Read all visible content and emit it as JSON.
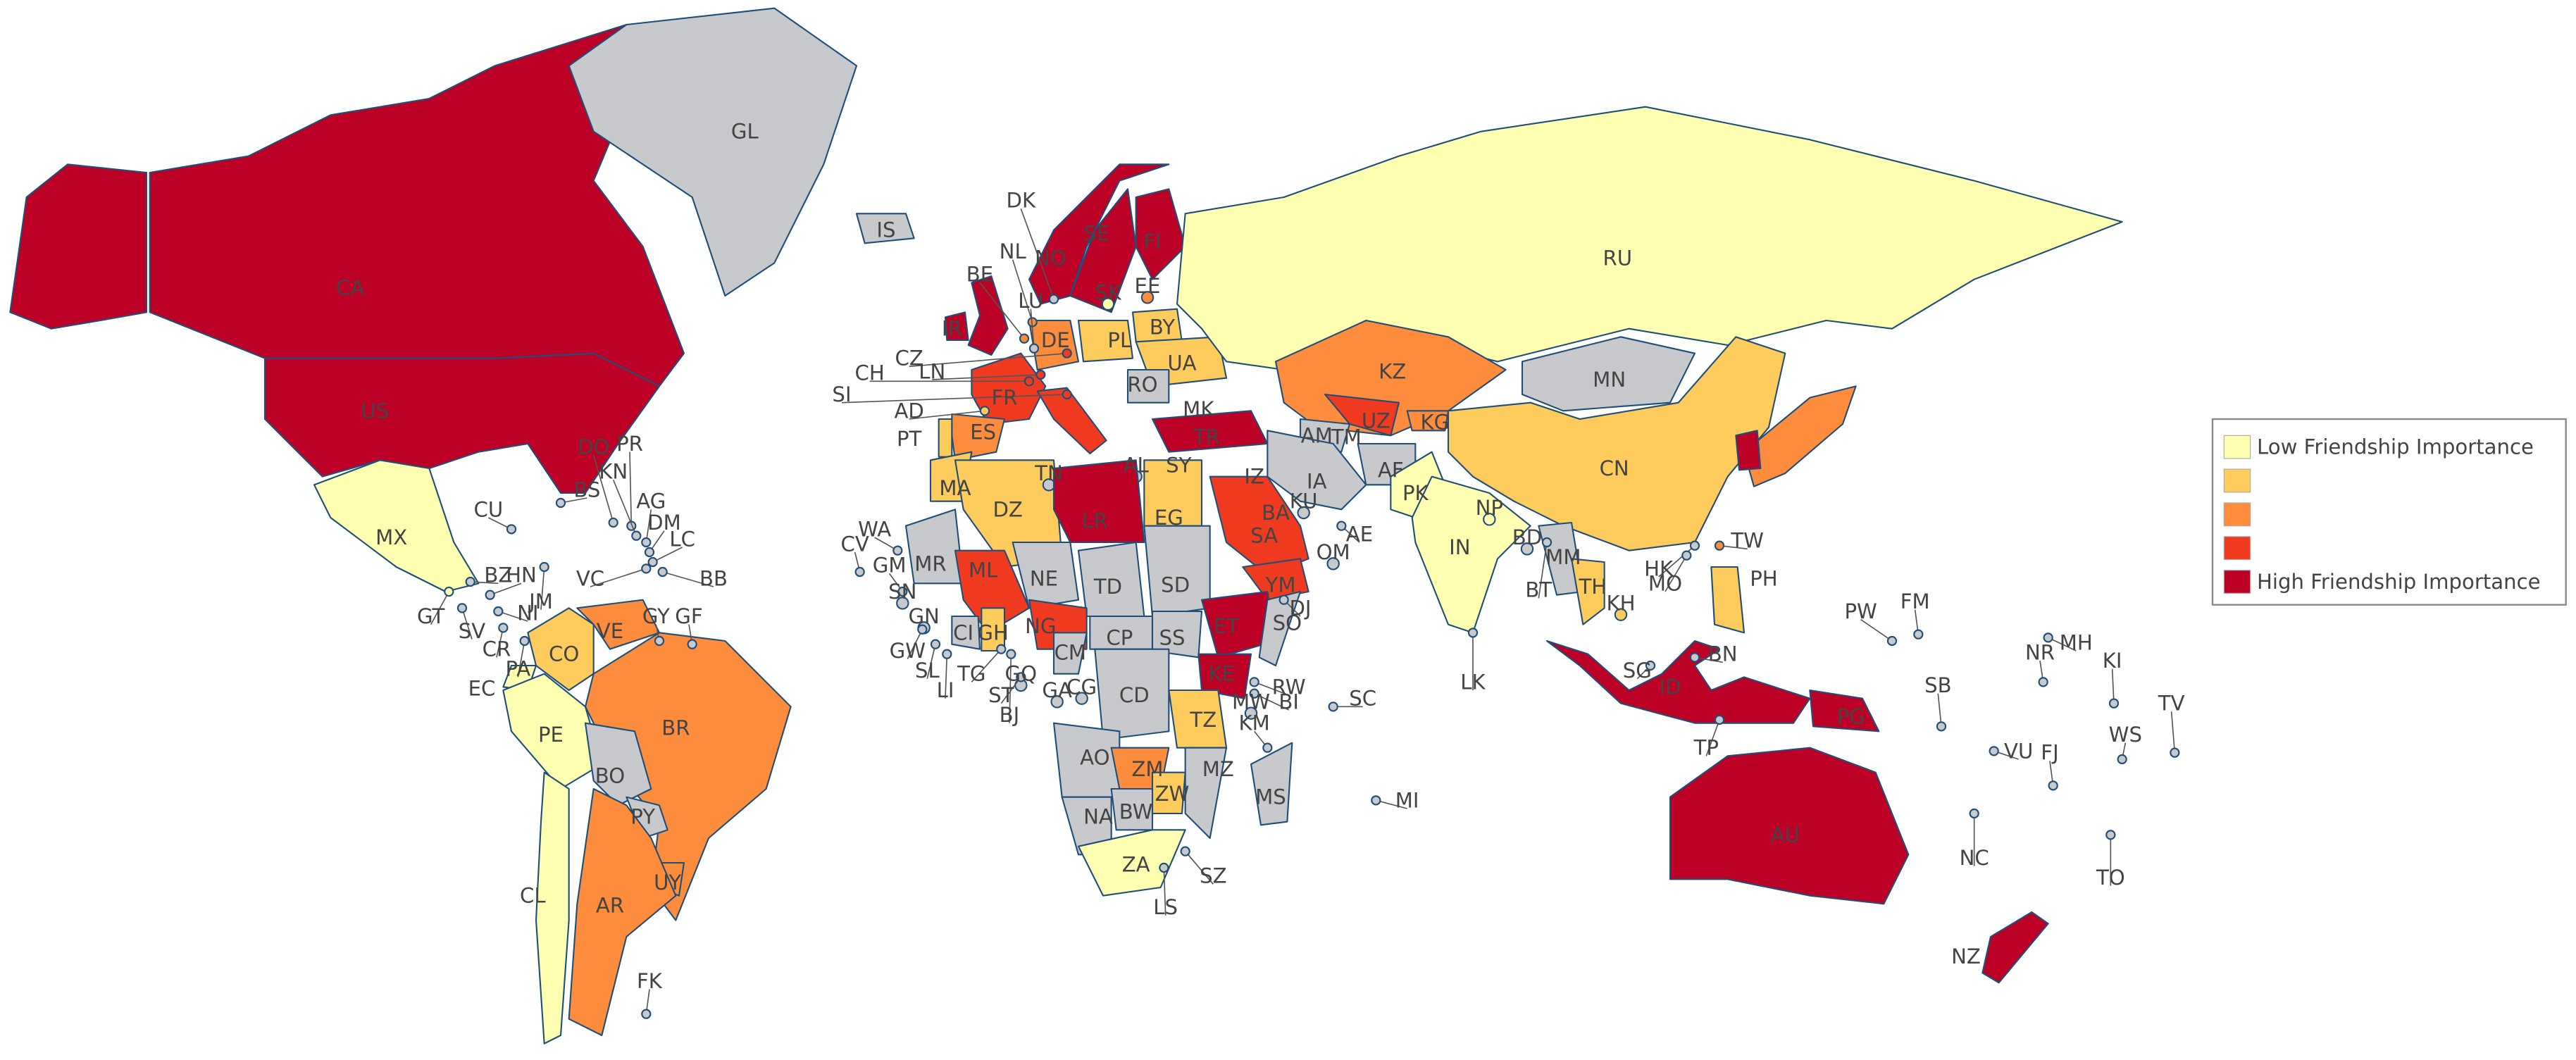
{
  "countries": [
    {
      "label": "CA",
      "color": "#bd0026"
    },
    {
      "label": "US",
      "color": "#bd0026"
    },
    {
      "label": "GL",
      "color": "#c8c9cc"
    },
    {
      "label": "MX",
      "color": "#ffffb2"
    },
    {
      "label": "CU",
      "color": "#c8c9cc"
    },
    {
      "label": "BS",
      "color": "#c8c9cc"
    },
    {
      "label": "DO",
      "color": "#c8c9cc"
    },
    {
      "label": "PR",
      "color": "#c8c9cc"
    },
    {
      "label": "KN",
      "color": "#c8c9cc"
    },
    {
      "label": "AG",
      "color": "#c8c9cc"
    },
    {
      "label": "DM",
      "color": "#c8c9cc"
    },
    {
      "label": "LC",
      "color": "#c8c9cc"
    },
    {
      "label": "BB",
      "color": "#c8c9cc"
    },
    {
      "label": "VC",
      "color": "#c8c9cc"
    },
    {
      "label": "GY",
      "color": "#c8c9cc"
    },
    {
      "label": "GF",
      "color": "#c8c9cc"
    },
    {
      "label": "BZ",
      "color": "#c8c9cc"
    },
    {
      "label": "GT",
      "color": "#ffffb2"
    },
    {
      "label": "SV",
      "color": "#c8c9cc"
    },
    {
      "label": "HN",
      "color": "#c8c9cc"
    },
    {
      "label": "NI",
      "color": "#c8c9cc"
    },
    {
      "label": "CR",
      "color": "#c8c9cc"
    },
    {
      "label": "PA",
      "color": "#c8c9cc"
    },
    {
      "label": "JM",
      "color": "#c8c9cc"
    },
    {
      "label": "CO",
      "color": "#fecc5c"
    },
    {
      "label": "VE",
      "color": "#fd8d3c"
    },
    {
      "label": "EC",
      "color": "#ffffb2"
    },
    {
      "label": "PE",
      "color": "#ffffb2"
    },
    {
      "label": "BR",
      "color": "#fd8d3c"
    },
    {
      "label": "BO",
      "color": "#c8c9cc"
    },
    {
      "label": "PY",
      "color": "#c8c9cc"
    },
    {
      "label": "UY",
      "color": "#fd8d3c"
    },
    {
      "label": "AR",
      "color": "#fd8d3c"
    },
    {
      "label": "CL",
      "color": "#ffffb2"
    },
    {
      "label": "FK",
      "color": "#c8c9cc"
    },
    {
      "label": "IS",
      "color": "#c8c9cc"
    },
    {
      "label": "IR",
      "color": "#bd0026"
    },
    {
      "color": "#bd0026"
    },
    {
      "label": "NO",
      "color": "#bd0026"
    },
    {
      "label": "SE",
      "color": "#bd0026"
    },
    {
      "label": "FI",
      "color": "#bd0026"
    },
    {
      "label": "DK",
      "color": "#c8c9cc"
    },
    {
      "label": "NL",
      "color": "#fd8d3c"
    },
    {
      "label": "BE",
      "color": "#fd8d3c"
    },
    {
      "label": "LU",
      "color": "#c8c9cc"
    },
    {
      "label": "DE",
      "color": "#fd8d3c"
    },
    {
      "label": "PL",
      "color": "#fecc5c"
    },
    {
      "label": "SK",
      "color": "#ffffb2"
    },
    {
      "label": "EE",
      "color": "#fd8d3c"
    },
    {
      "label": "BY",
      "color": "#fecc5c"
    },
    {
      "label": "UA",
      "color": "#fecc5c"
    },
    {
      "label": "CZ",
      "color": "#f03b20"
    },
    {
      "label": "CH",
      "color": "#f03b20"
    },
    {
      "label": "LN",
      "color": "#f03b20"
    },
    {
      "label": "SI",
      "color": "#f03b20"
    },
    {
      "label": "AD",
      "color": "#fecc5c"
    },
    {
      "label": "FR",
      "color": "#f03b20"
    },
    {
      "label": "ES",
      "color": "#fd8d3c"
    },
    {
      "label": "PT",
      "color": "#fecc5c"
    },
    {
      "color": "#f03b20"
    },
    {
      "label": "RO",
      "color": "#c8c9cc"
    },
    {
      "label": "MK",
      "color": "#c8c9cc"
    },
    {
      "label": "TR",
      "color": "#bd0026"
    },
    {
      "label": "RU",
      "color": "#ffffb2"
    },
    {
      "label": "KZ",
      "color": "#fd8d3c"
    },
    {
      "label": "UZ",
      "color": "#f03b20"
    },
    {
      "label": "TM",
      "color": "#c8c9cc"
    },
    {
      "label": "KG",
      "color": "#fd8d3c"
    },
    {
      "label": "AM",
      "color": "#c8c9cc"
    },
    {
      "label": "AF",
      "color": "#c8c9cc"
    },
    {
      "label": "IA",
      "color": "#c8c9cc"
    },
    {
      "label": "IZ",
      "color": "#fd8d3c"
    },
    {
      "label": "SY",
      "color": "#c8c9cc"
    },
    {
      "label": "AL",
      "color": "#c8c9cc"
    },
    {
      "label": "KU",
      "color": "#c8c9cc"
    },
    {
      "label": "BA",
      "color": "#fd8d3c"
    },
    {
      "label": "SA",
      "color": "#f03b20"
    },
    {
      "label": "AE",
      "color": "#c8c9cc"
    },
    {
      "label": "OM",
      "color": "#c8c9cc"
    },
    {
      "label": "YM",
      "color": "#f03b20"
    },
    {
      "label": "PK",
      "color": "#ffffb2"
    },
    {
      "label": "IN",
      "color": "#ffffb2"
    },
    {
      "label": "NP",
      "color": "#ffffb2"
    },
    {
      "label": "BD",
      "color": "#c8c9cc"
    },
    {
      "label": "BT",
      "color": "#c8c9cc"
    },
    {
      "label": "LK",
      "color": "#c8c9cc"
    },
    {
      "label": "MN",
      "color": "#c8c9cc"
    },
    {
      "label": "CN",
      "color": "#fecc5c"
    },
    {
      "color": "#fd8d3c"
    },
    {
      "color": "#bd0026"
    },
    {
      "label": "TW",
      "color": "#fd8d3c"
    },
    {
      "label": "HK",
      "color": "#c8c9cc"
    },
    {
      "label": "MO",
      "color": "#c8c9cc"
    },
    {
      "label": "MM",
      "color": "#c8c9cc"
    },
    {
      "label": "TH",
      "color": "#fecc5c"
    },
    {
      "label": "KH",
      "color": "#fecc5c"
    },
    {
      "label": "PH",
      "color": "#fecc5c"
    },
    {
      "label": "SG",
      "color": "#c8c9cc"
    },
    {
      "label": "BN",
      "color": "#c8c9cc"
    },
    {
      "label": "ID",
      "color": "#bd0026"
    },
    {
      "label": "TP",
      "color": "#c8c9cc"
    },
    {
      "label": "PG",
      "color": "#bd0026"
    },
    {
      "label": "AU",
      "color": "#bd0026"
    },
    {
      "label": "NZ",
      "color": "#bd0026"
    },
    {
      "label": "MA",
      "color": "#fecc5c"
    },
    {
      "label": "DZ",
      "color": "#fecc5c"
    },
    {
      "label": "TN",
      "color": "#c8c9cc"
    },
    {
      "label": "LR",
      "color": "#bd0026"
    },
    {
      "label": "EG",
      "color": "#fecc5c"
    },
    {
      "label": "MR",
      "color": "#c8c9cc"
    },
    {
      "label": "ML",
      "color": "#f03b20"
    },
    {
      "label": "NE",
      "color": "#c8c9cc"
    },
    {
      "label": "TD",
      "color": "#c8c9cc"
    },
    {
      "label": "SD",
      "color": "#c8c9cc"
    },
    {
      "label": "WA",
      "color": "#c8c9cc"
    },
    {
      "label": "CV",
      "color": "#c8c9cc"
    },
    {
      "label": "GM",
      "color": "#c8c9cc"
    },
    {
      "label": "SN",
      "color": "#c8c9cc"
    },
    {
      "label": "GN",
      "color": "#c8c9cc"
    },
    {
      "label": "GW",
      "color": "#c8c9cc"
    },
    {
      "label": "SL",
      "color": "#c8c9cc"
    },
    {
      "label": "LI",
      "color": "#c8c9cc"
    },
    {
      "label": "CI",
      "color": "#c8c9cc"
    },
    {
      "label": "GH",
      "color": "#fecc5c"
    },
    {
      "label": "TG",
      "color": "#c8c9cc"
    },
    {
      "label": "BJ",
      "color": "#c8c9cc"
    },
    {
      "label": "ST",
      "color": "#c8c9cc"
    },
    {
      "label": "GQ",
      "color": "#c8c9cc"
    },
    {
      "label": "NG",
      "color": "#f03b20"
    },
    {
      "label": "CM",
      "color": "#c8c9cc"
    },
    {
      "label": "CP",
      "color": "#c8c9cc"
    },
    {
      "label": "SS",
      "color": "#c8c9cc"
    },
    {
      "label": "ET",
      "color": "#bd0026"
    },
    {
      "label": "DJ",
      "color": "#c8c9cc"
    },
    {
      "label": "SO",
      "color": "#c8c9cc"
    },
    {
      "label": "KE",
      "color": "#bd0026"
    },
    {
      "label": "GA",
      "color": "#c8c9cc"
    },
    {
      "label": "CG",
      "color": "#c8c9cc"
    },
    {
      "label": "CD",
      "color": "#c8c9cc"
    },
    {
      "label": "RW",
      "color": "#c8c9cc"
    },
    {
      "label": "BI",
      "color": "#c8c9cc"
    },
    {
      "label": "MW",
      "color": "#c8c9cc"
    },
    {
      "label": "TZ",
      "color": "#fecc5c"
    },
    {
      "label": "KM",
      "color": "#c8c9cc"
    },
    {
      "label": "SC",
      "color": "#c8c9cc"
    },
    {
      "label": "AO",
      "color": "#c8c9cc"
    },
    {
      "label": "ZM",
      "color": "#fd8d3c"
    },
    {
      "label": "MZ",
      "color": "#c8c9cc"
    },
    {
      "label": "ZW",
      "color": "#fecc5c"
    },
    {
      "label": "MS",
      "color": "#c8c9cc"
    },
    {
      "label": "MI",
      "color": "#c8c9cc"
    },
    {
      "label": "NA",
      "color": "#c8c9cc"
    },
    {
      "label": "BW",
      "color": "#c8c9cc"
    },
    {
      "label": "ZA",
      "color": "#ffffb2"
    },
    {
      "label": "LS",
      "color": "#c8c9cc"
    },
    {
      "label": "SZ",
      "color": "#c8c9cc"
    },
    {
      "label": "PW",
      "color": "#c8c9cc"
    },
    {
      "label": "FM",
      "color": "#c8c9cc"
    },
    {
      "label": "MH",
      "color": "#c8c9cc"
    },
    {
      "label": "NR",
      "color": "#c8c9cc"
    },
    {
      "label": "KI",
      "color": "#c8c9cc"
    },
    {
      "label": "SB",
      "color": "#c8c9cc"
    },
    {
      "label": "WS",
      "color": "#c8c9cc"
    },
    {
      "label": "TV",
      "color": "#c8c9cc"
    },
    {
      "label": "VU",
      "color": "#c8c9cc"
    },
    {
      "label": "FJ",
      "color": "#c8c9cc"
    },
    {
      "label": "NC",
      "color": "#c8c9cc"
    },
    {
      "label": "TO",
      "color": "#c8c9cc"
    }
  ],
  "legend": [
    {
      "label": "Low Friendship Importance",
      "color": "#ffffb2"
    },
    {
      "color": "#fecc5c"
    },
    {
      "color": "#fd8d3c"
    },
    {
      "color": "#f03b20"
    },
    {
      "label": "High Friendship Importance",
      "color": "#bd0026"
    }
  ]
}
